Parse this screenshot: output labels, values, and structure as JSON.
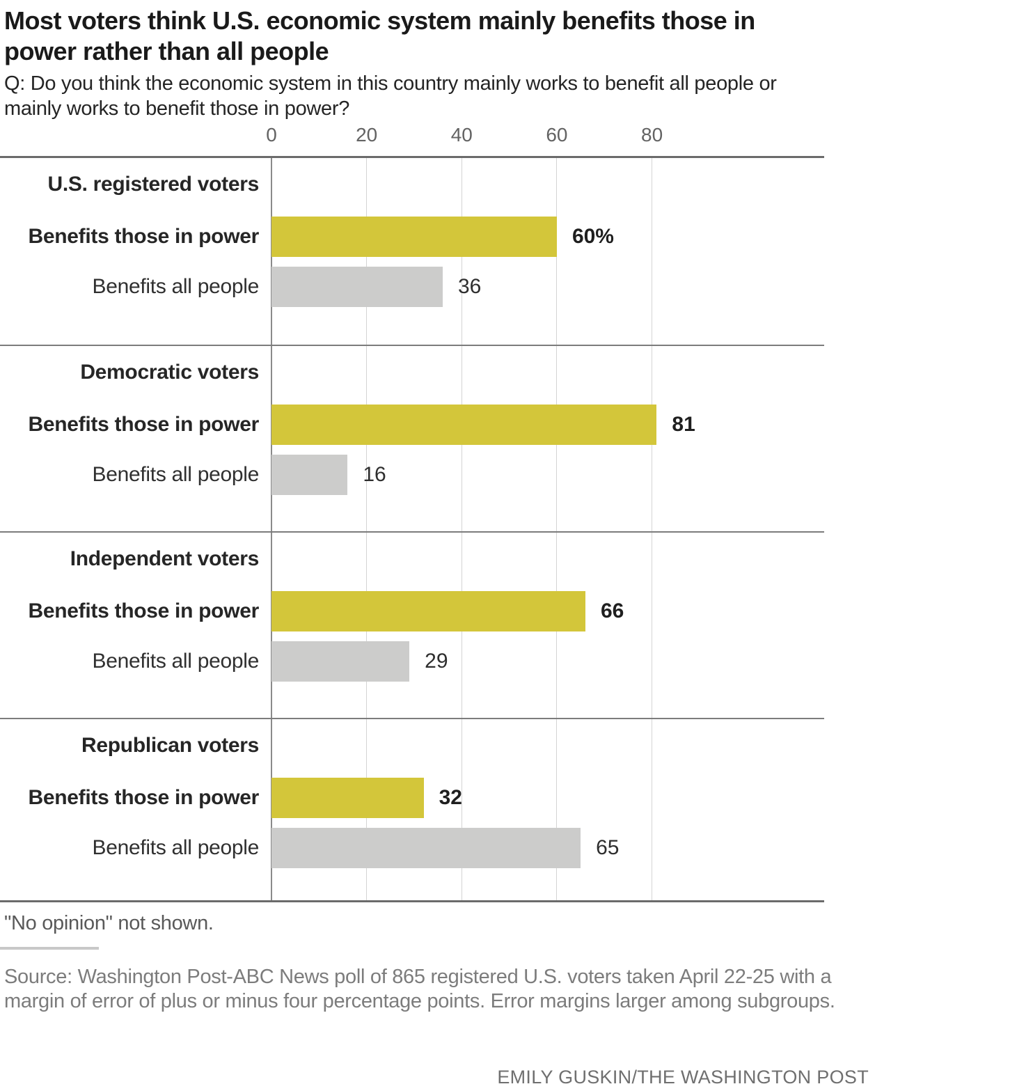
{
  "header": {
    "title_lines": [
      "Most voters think U.S. economic system mainly benefits those in",
      "power rather than all people"
    ],
    "subtitle_lines": [
      "Q: Do you think the economic system in this country mainly works to benefit all people or",
      "mainly works to benefit those in power?"
    ]
  },
  "chart_data": {
    "type": "bar",
    "orientation": "horizontal",
    "title": "Most voters think U.S. economic system mainly benefits those in power rather than all people",
    "subtitle": "Q: Do you think the economic system in this country mainly works to benefit all people or mainly works to benefit those in power?",
    "unit": "percent",
    "axis_ticks": [
      0,
      20,
      40,
      60,
      80
    ],
    "xlim": [
      0,
      116
    ],
    "grid": true,
    "legend_position": "none",
    "series": [
      {
        "key": "power",
        "label": "Benefits those in power",
        "color": "#d3c63a"
      },
      {
        "key": "all",
        "label": "Benefits all people",
        "color": "#cccccb"
      }
    ],
    "groups": [
      {
        "name": "U.S. registered voters",
        "values": {
          "power": 60,
          "all": 36
        },
        "value_labels": {
          "power": "60%",
          "all": "36"
        }
      },
      {
        "name": "Democratic voters",
        "values": {
          "power": 81,
          "all": 16
        },
        "value_labels": {
          "power": "81",
          "all": "16"
        }
      },
      {
        "name": "Independent voters",
        "values": {
          "power": 66,
          "all": 29
        },
        "value_labels": {
          "power": "66",
          "all": "29"
        }
      },
      {
        "name": "Republican voters",
        "values": {
          "power": 32,
          "all": 65
        },
        "value_labels": {
          "power": "32",
          "all": "65"
        }
      }
    ]
  },
  "footer": {
    "note": "\"No opinion\" not shown.",
    "source": "Source: Washington Post-ABC News poll of 865 registered U.S. voters taken April 22-25 with a margin of error of plus or minus four percentage points. Error margins larger among subgroups.",
    "source_lines": [
      "Source: Washington Post-ABC News poll of 865 registered U.S. voters taken April 22-25 with a",
      "margin of error of plus or minus four percentage points. Error margins larger among subgroups."
    ],
    "credit": "EMILY GUSKIN/THE WASHINGTON POST"
  },
  "colors": {
    "power_bar": "#d3c63a",
    "all_bar": "#cccccb",
    "title_text": "#1a1a1a",
    "grid_line": "#d4d4d4",
    "zero_line": "#8a8a8a",
    "rule_dark": "#6b6b6b"
  }
}
